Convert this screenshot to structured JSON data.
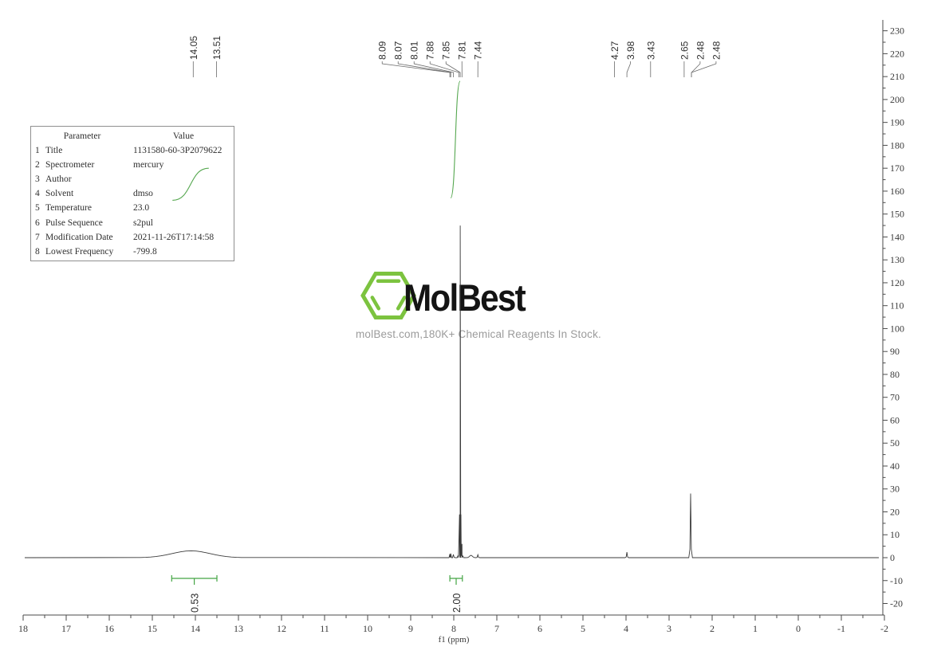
{
  "colors": {
    "trace": "#3b3b3b",
    "axis": "#4a4a4a",
    "peak_label": "#2e2e2e",
    "integral_green": "#44a544",
    "curve_green": "#55a74f",
    "logo_green": "#7cc33f",
    "logo_text": "#141414",
    "tagline_gray": "#9b9b9b",
    "table_border": "#8f8f8f",
    "table_text": "#2f2f2f"
  },
  "parameter_table": {
    "header": {
      "parameter": "Parameter",
      "value": "Value"
    },
    "rows": [
      {
        "index": "1",
        "parameter": "Title",
        "value": "1131580-60-3P2079622"
      },
      {
        "index": "2",
        "parameter": "Spectrometer",
        "value": "mercury"
      },
      {
        "index": "3",
        "parameter": "Author",
        "value": ""
      },
      {
        "index": "4",
        "parameter": "Solvent",
        "value": "dmso"
      },
      {
        "index": "5",
        "parameter": "Temperature",
        "value": "23.0"
      },
      {
        "index": "6",
        "parameter": "Pulse Sequence",
        "value": "s2pul"
      },
      {
        "index": "7",
        "parameter": "Modification Date",
        "value": "2021-11-26T17:14:58"
      },
      {
        "index": "8",
        "parameter": "Lowest Frequency",
        "value": "-799.8"
      }
    ]
  },
  "logo": {
    "brand": "MolBest",
    "tagline": "molBest.com,180K+ Chemical Reagents In Stock."
  },
  "chart_data": {
    "type": "line",
    "xlabel": "f1 (ppm)",
    "x_axis": {
      "min": -2,
      "max": 18,
      "major_step": 1,
      "minor_step": 0.5,
      "tick_labels": [
        "18",
        "17",
        "16",
        "15",
        "14",
        "13",
        "12",
        "11",
        "10",
        "9",
        "8",
        "7",
        "6",
        "5",
        "4",
        "3",
        "2",
        "1",
        "0",
        "-1",
        "-2"
      ]
    },
    "y_axis": {
      "min": -20,
      "max": 230,
      "major_step": 10,
      "minor_step": 5,
      "tick_labels": [
        "230",
        "220",
        "210",
        "200",
        "190",
        "180",
        "170",
        "160",
        "150",
        "140",
        "130",
        "120",
        "110",
        "100",
        "90",
        "80",
        "70",
        "60",
        "50",
        "40",
        "30",
        "20",
        "10",
        "0",
        "-10",
        "-20"
      ]
    },
    "peak_label_groups": [
      {
        "labels": [
          {
            "text": "14.05",
            "ppm": 14.05
          },
          {
            "text": "13.51",
            "ppm": 13.51
          }
        ]
      },
      {
        "labels": [
          {
            "text": "8.09",
            "ppm": 8.09
          },
          {
            "text": "8.07",
            "ppm": 8.07
          },
          {
            "text": "8.01",
            "ppm": 8.01
          },
          {
            "text": "7.88",
            "ppm": 7.88
          },
          {
            "text": "7.85",
            "ppm": 7.85
          },
          {
            "text": "7.81",
            "ppm": 7.81
          },
          {
            "text": "7.44",
            "ppm": 7.44
          }
        ]
      },
      {
        "labels": [
          {
            "text": "4.27",
            "ppm": 4.27
          },
          {
            "text": "3.98",
            "ppm": 3.98
          },
          {
            "text": "3.43",
            "ppm": 3.43
          },
          {
            "text": "2.65",
            "ppm": 2.65
          },
          {
            "text": "2.48",
            "ppm": 2.48
          },
          {
            "text": "2.48",
            "ppm": 2.48
          }
        ]
      }
    ],
    "peaks": [
      {
        "ppm": 14.1,
        "height": 3,
        "half_width_ppm": 0.75,
        "shape": "broad"
      },
      {
        "ppm": 8.09,
        "height": 1.6,
        "half_width_ppm": 0.04,
        "shape": "sharp"
      },
      {
        "ppm": 8.07,
        "height": 1.8,
        "half_width_ppm": 0.04,
        "shape": "sharp"
      },
      {
        "ppm": 8.01,
        "height": 1.4,
        "half_width_ppm": 0.04,
        "shape": "sharp"
      },
      {
        "ppm": 7.88,
        "height": 8,
        "half_width_ppm": 0.03,
        "shape": "sharp"
      },
      {
        "ppm": 7.85,
        "height": 145,
        "half_width_ppm": 0.03,
        "shape": "sharp"
      },
      {
        "ppm": 7.81,
        "height": 6,
        "half_width_ppm": 0.03,
        "shape": "sharp"
      },
      {
        "ppm": 7.6,
        "height": 1.0,
        "half_width_ppm": 0.06,
        "shape": "broad"
      },
      {
        "ppm": 7.44,
        "height": 1.3,
        "half_width_ppm": 0.04,
        "shape": "sharp"
      },
      {
        "ppm": 3.98,
        "height": 2.4,
        "half_width_ppm": 0.03,
        "shape": "sharp"
      },
      {
        "ppm": 2.5,
        "height": 28,
        "half_width_ppm": 0.03,
        "shape": "sharp"
      }
    ],
    "integrals": [
      {
        "label": "0.53",
        "from_ppm": 14.55,
        "to_ppm": 13.5,
        "curve_start": 156,
        "curve_end": 170
      },
      {
        "label": "2.00",
        "from_ppm": 8.09,
        "to_ppm": 7.8,
        "curve_start": 157,
        "curve_end": 208
      }
    ],
    "baseline_value": 0,
    "grid": false,
    "legend": false
  }
}
